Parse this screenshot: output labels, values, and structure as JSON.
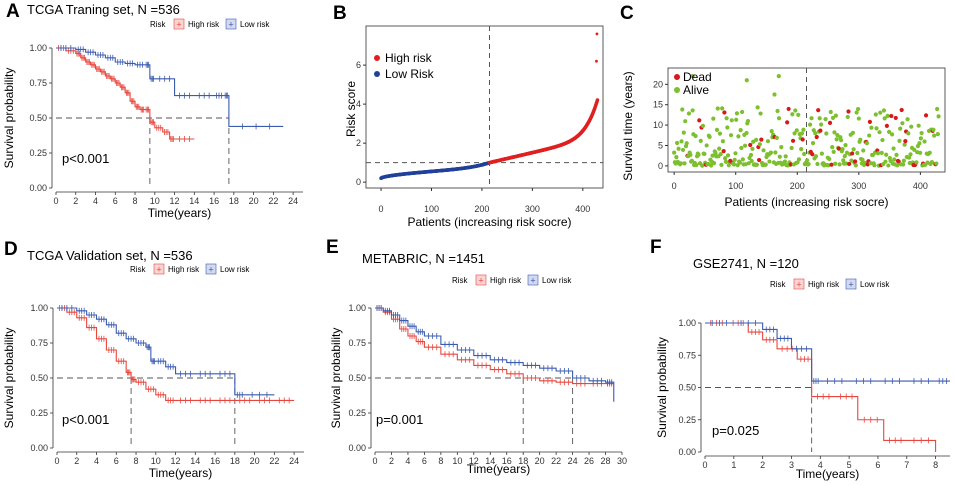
{
  "colors": {
    "high": "#e8473f",
    "low": "#3b5bb0",
    "scatter_high": "#e02020",
    "scatter_low": "#22409a",
    "dead": "#d7191c",
    "alive": "#7cbf2f"
  },
  "legend": {
    "risk_label": "Risk",
    "high_label": "High risk",
    "low_label": "Low risk"
  },
  "chart_data": [
    {
      "panel": "A",
      "type": "line",
      "subtype": "kaplan-meier",
      "title": "TCGA Traning set, N =536",
      "xlabel": "Time(years)",
      "ylabel": "Survival probability",
      "xlim": [
        0,
        25
      ],
      "ylim": [
        0,
        1
      ],
      "xticks": [
        "0",
        "2",
        "4",
        "6",
        "8",
        "10",
        "12",
        "14",
        "16",
        "18",
        "20",
        "22",
        "24"
      ],
      "yticks": [
        "0.00",
        "0.25",
        "0.50",
        "0.75",
        "1.00"
      ],
      "pvalue": "p<0.001",
      "median_lines": [
        9.5,
        17.5
      ],
      "series": [
        {
          "name": "High risk",
          "x": [
            0,
            1,
            2,
            2.5,
            3,
            3.5,
            4,
            4.5,
            5,
            5.5,
            6,
            6.5,
            7,
            7.5,
            8,
            8.5,
            9,
            9.5,
            10,
            10.8,
            11.5,
            12,
            14
          ],
          "y": [
            1.0,
            0.98,
            0.96,
            0.93,
            0.9,
            0.88,
            0.85,
            0.83,
            0.8,
            0.78,
            0.75,
            0.72,
            0.68,
            0.62,
            0.58,
            0.56,
            0.56,
            0.47,
            0.43,
            0.4,
            0.35,
            0.35,
            0.35
          ]
        },
        {
          "name": "Low risk",
          "x": [
            0,
            2,
            3,
            4,
            5,
            6,
            7,
            8,
            9,
            9.5,
            10,
            12,
            14,
            16,
            17,
            17.5,
            23
          ],
          "y": [
            1.0,
            0.99,
            0.97,
            0.95,
            0.93,
            0.9,
            0.89,
            0.88,
            0.88,
            0.78,
            0.78,
            0.66,
            0.66,
            0.66,
            0.66,
            0.44,
            0.44
          ]
        }
      ]
    },
    {
      "panel": "D",
      "type": "line",
      "subtype": "kaplan-meier",
      "title": "TCGA Validation set, N =536",
      "xlabel": "Time(years)",
      "ylabel": "Survival probability",
      "xlim": [
        0,
        25
      ],
      "ylim": [
        0,
        1
      ],
      "xticks": [
        "0",
        "2",
        "4",
        "6",
        "8",
        "10",
        "12",
        "14",
        "16",
        "18",
        "20",
        "22",
        "24"
      ],
      "yticks": [
        "0.00",
        "0.25",
        "0.50",
        "0.75",
        "1.00"
      ],
      "pvalue": "p<0.001",
      "median_lines": [
        7.5,
        18
      ],
      "series": [
        {
          "name": "High risk",
          "x": [
            0,
            1,
            2,
            3,
            4,
            5,
            6,
            7,
            7.5,
            8,
            9,
            10,
            11,
            12,
            14,
            16,
            18,
            20,
            22,
            24
          ],
          "y": [
            1.0,
            0.97,
            0.93,
            0.86,
            0.78,
            0.7,
            0.62,
            0.54,
            0.49,
            0.47,
            0.42,
            0.38,
            0.34,
            0.34,
            0.34,
            0.34,
            0.34,
            0.34,
            0.34,
            0.34
          ]
        },
        {
          "name": "Low risk",
          "x": [
            0,
            2,
            3,
            4,
            5,
            6,
            7,
            8,
            9,
            9.5,
            10,
            11,
            12,
            14,
            16,
            18,
            19,
            22
          ],
          "y": [
            1.0,
            0.98,
            0.95,
            0.92,
            0.88,
            0.82,
            0.78,
            0.75,
            0.72,
            0.62,
            0.62,
            0.58,
            0.53,
            0.53,
            0.53,
            0.38,
            0.38,
            0.38
          ]
        }
      ]
    },
    {
      "panel": "E",
      "type": "line",
      "subtype": "kaplan-meier",
      "title": "METABRIC, N =1451",
      "xlabel": "Time(years)",
      "ylabel": "Survival probability",
      "xlim": [
        0,
        30
      ],
      "ylim": [
        0,
        1
      ],
      "xticks": [
        "0",
        "2",
        "4",
        "6",
        "8",
        "10",
        "12",
        "14",
        "16",
        "18",
        "20",
        "22",
        "24",
        "26",
        "28",
        "30"
      ],
      "yticks": [
        "0.00",
        "0.25",
        "0.50",
        "0.75",
        "1.00"
      ],
      "pvalue": "p=0.001",
      "median_lines": [
        18,
        24
      ],
      "series": [
        {
          "name": "High risk",
          "x": [
            0,
            1,
            2,
            3,
            4,
            5,
            6,
            8,
            10,
            12,
            14,
            16,
            18,
            20,
            22,
            24,
            26,
            28,
            29
          ],
          "y": [
            1.0,
            0.97,
            0.92,
            0.85,
            0.8,
            0.76,
            0.72,
            0.67,
            0.63,
            0.59,
            0.56,
            0.53,
            0.5,
            0.48,
            0.47,
            0.46,
            0.46,
            0.46,
            0.46
          ]
        },
        {
          "name": "Low risk",
          "x": [
            0,
            1,
            2,
            3,
            4,
            5,
            6,
            8,
            10,
            12,
            14,
            16,
            18,
            20,
            22,
            24,
            26,
            28,
            29
          ],
          "y": [
            1.0,
            0.98,
            0.95,
            0.91,
            0.87,
            0.83,
            0.8,
            0.74,
            0.7,
            0.66,
            0.63,
            0.61,
            0.59,
            0.57,
            0.55,
            0.5,
            0.48,
            0.47,
            0.33
          ]
        }
      ]
    },
    {
      "panel": "F",
      "type": "line",
      "subtype": "kaplan-meier",
      "title": "GSE2741, N =120",
      "xlabel": "Time(years)",
      "ylabel": "Survival probability",
      "xlim": [
        0,
        8.5
      ],
      "ylim": [
        0,
        1
      ],
      "xticks": [
        "0",
        "1",
        "2",
        "3",
        "4",
        "5",
        "6",
        "7",
        "8"
      ],
      "yticks": [
        "0.00",
        "0.25",
        "0.50",
        "0.75",
        "1.00"
      ],
      "pvalue": "p=0.025",
      "median_lines": [
        3.7
      ],
      "series": [
        {
          "name": "High risk",
          "x": [
            0,
            0.8,
            1.5,
            2,
            2.5,
            3.2,
            3.7,
            4.5,
            5.3,
            6.2,
            7,
            8
          ],
          "y": [
            1.0,
            1.0,
            0.93,
            0.87,
            0.8,
            0.72,
            0.43,
            0.43,
            0.25,
            0.09,
            0.09,
            0.0
          ]
        },
        {
          "name": "Low risk",
          "x": [
            0,
            1,
            2,
            2.5,
            3,
            3.7,
            4,
            5,
            6,
            7,
            8,
            8.5
          ],
          "y": [
            1.0,
            1.0,
            0.95,
            0.88,
            0.8,
            0.55,
            0.55,
            0.55,
            0.55,
            0.55,
            0.55,
            0.55
          ]
        }
      ]
    },
    {
      "panel": "B",
      "type": "scatter",
      "subtype": "risk-score",
      "xlabel": "Patients (increasing risk socre)",
      "ylabel": "Risk score",
      "xlim": [
        -10,
        440
      ],
      "ylim": [
        -0.3,
        7.8
      ],
      "xticks": [
        "0",
        "100",
        "200",
        "300",
        "400"
      ],
      "yticks": [
        "0",
        "2",
        "4",
        "6"
      ],
      "n_patients": 430,
      "cutoff_index": 215,
      "cutoff_value": 1.0,
      "legend": [
        "High risk",
        "Low Risk"
      ],
      "outliers": [
        [
          427,
          6.2
        ],
        [
          428,
          7.6
        ]
      ]
    },
    {
      "panel": "C",
      "type": "scatter",
      "subtype": "survival-status",
      "xlabel": "Patients (increasing risk socre)",
      "ylabel": "Survival time (years)",
      "xlim": [
        -10,
        440
      ],
      "ylim": [
        -1.5,
        24
      ],
      "xticks": [
        "0",
        "100",
        "200",
        "300",
        "400"
      ],
      "yticks": [
        "0",
        "5",
        "10",
        "15",
        "20"
      ],
      "cutoff_index": 215,
      "legend": [
        "Dead",
        "Alive"
      ]
    }
  ]
}
